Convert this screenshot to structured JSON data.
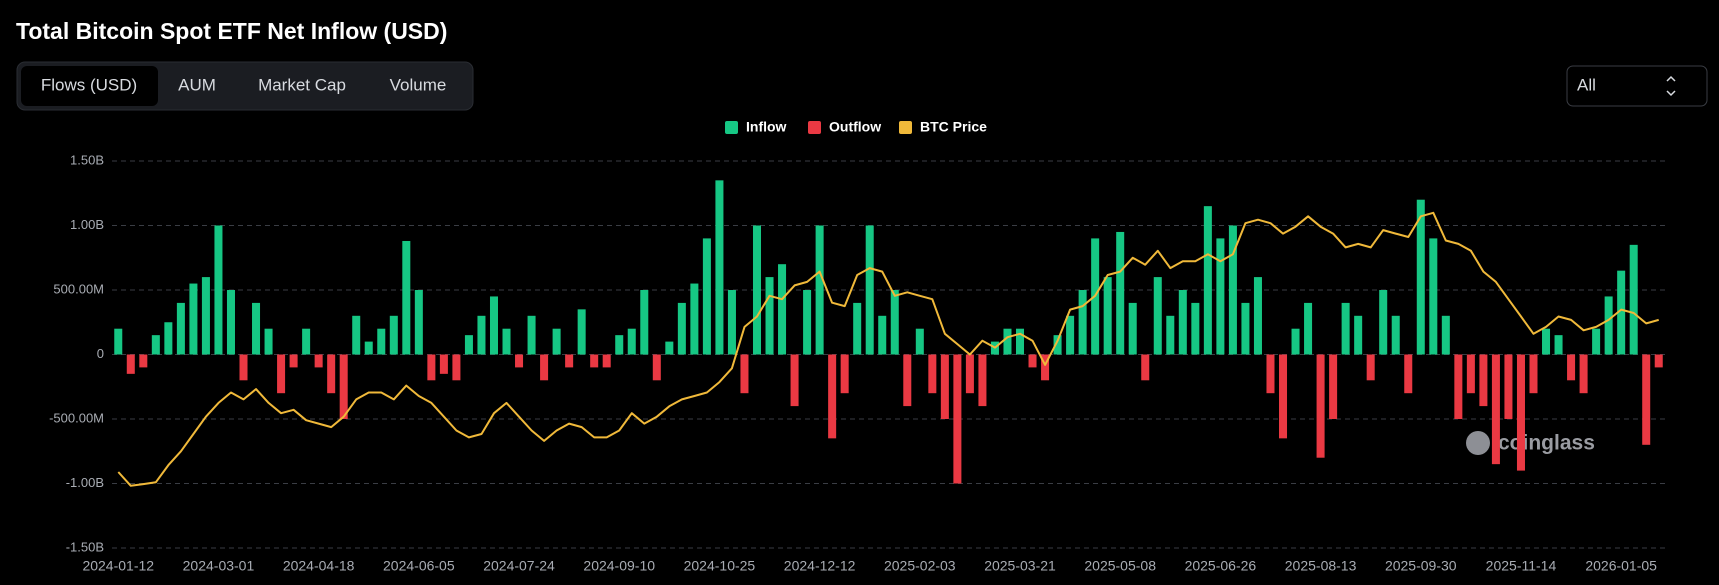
{
  "chart_data": {
    "type": "bar",
    "title": "Total Bitcoin Spot ETF Net Inflow (USD)",
    "categories": [
      "2024-01-12",
      null,
      null,
      null,
      null,
      null,
      null,
      null,
      "2024-03-01",
      null,
      null,
      null,
      null,
      null,
      null,
      null,
      "2024-04-18",
      null,
      null,
      null,
      null,
      null,
      null,
      null,
      "2024-06-05",
      null,
      null,
      null,
      null,
      null,
      null,
      null,
      "2024-07-24",
      null,
      null,
      null,
      null,
      null,
      null,
      null,
      "2024-09-10",
      null,
      null,
      null,
      null,
      null,
      null,
      null,
      "2024-10-25",
      null,
      null,
      null,
      null,
      null,
      null,
      null,
      "2024-12-12",
      null,
      null,
      null,
      null,
      null,
      null,
      null,
      "2025-02-03",
      null,
      null,
      null,
      null,
      null,
      null,
      null,
      "2025-03-21",
      null,
      null,
      null,
      null,
      null,
      null,
      null,
      "2025-05-08",
      null,
      null,
      null,
      null,
      null,
      null,
      null,
      "2025-06-26",
      null,
      null,
      null,
      null,
      null,
      null,
      null,
      "2025-08-13",
      null,
      null,
      null,
      null,
      null,
      null,
      null,
      "2025-09-30",
      null,
      null,
      null,
      null,
      null,
      null,
      null,
      "2025-11-14",
      null,
      null,
      null,
      null,
      null,
      null,
      null,
      "2026-01-05",
      null,
      null,
      null
    ],
    "series": [
      {
        "name": "Inflow",
        "color": "#16c784",
        "values": [
          200000000.0,
          null,
          null,
          150000000.0,
          250000000.0,
          400000000.0,
          550000000.0,
          600000000.0,
          1000000000.0,
          500000000.0,
          null,
          400000000.0,
          200000000.0,
          null,
          null,
          200000000.0,
          null,
          null,
          null,
          300000000.0,
          100000000.0,
          200000000.0,
          300000000.0,
          880000000.0,
          500000000.0,
          null,
          null,
          null,
          150000000.0,
          300000000.0,
          450000000.0,
          200000000.0,
          null,
          300000000.0,
          null,
          200000000.0,
          null,
          350000000.0,
          null,
          null,
          150000000.0,
          200000000.0,
          500000000.0,
          null,
          100000000.0,
          400000000.0,
          550000000.0,
          900000000.0,
          1350000000.0,
          500000000.0,
          null,
          1000000000.0,
          600000000.0,
          700000000.0,
          null,
          500000000.0,
          1000000000.0,
          null,
          null,
          400000000.0,
          1000000000.0,
          300000000.0,
          500000000.0,
          null,
          200000000.0,
          null,
          null,
          null,
          null,
          null,
          100000000.0,
          200000000.0,
          200000000.0,
          null,
          null,
          150000000.0,
          300000000.0,
          500000000.0,
          900000000.0,
          600000000.0,
          950000000.0,
          400000000.0,
          null,
          600000000.0,
          300000000.0,
          500000000.0,
          400000000.0,
          1150000000.0,
          900000000.0,
          1000000000.0,
          400000000.0,
          600000000.0,
          null,
          null,
          200000000.0,
          400000000.0,
          null,
          null,
          400000000.0,
          300000000.0,
          null,
          500000000.0,
          300000000.0,
          null,
          1200000000.0,
          900000000.0,
          300000000.0,
          null,
          null,
          null,
          null,
          null,
          null,
          null,
          200000000.0,
          150000000.0,
          null,
          null,
          200000000.0,
          450000000.0,
          650000000.0,
          850000000.0,
          null,
          null
        ]
      },
      {
        "name": "Outflow",
        "color": "#ea3943",
        "values": [
          null,
          -150000000.0,
          -100000000.0,
          null,
          null,
          null,
          null,
          null,
          null,
          null,
          -200000000.0,
          null,
          null,
          -300000000.0,
          -100000000.0,
          null,
          -100000000.0,
          -300000000.0,
          -500000000.0,
          null,
          null,
          null,
          null,
          null,
          null,
          -200000000.0,
          -150000000.0,
          -200000000.0,
          null,
          null,
          null,
          null,
          -100000000.0,
          null,
          -200000000.0,
          null,
          -100000000.0,
          null,
          -100000000.0,
          -100000000.0,
          null,
          null,
          null,
          -200000000.0,
          null,
          null,
          null,
          null,
          null,
          null,
          -300000000.0,
          null,
          null,
          null,
          -400000000.0,
          null,
          null,
          -650000000.0,
          -300000000.0,
          null,
          null,
          null,
          null,
          -400000000.0,
          null,
          -300000000.0,
          -500000000.0,
          -1000000000.0,
          -300000000.0,
          -400000000.0,
          null,
          null,
          null,
          -100000000.0,
          -200000000.0,
          null,
          null,
          null,
          null,
          null,
          null,
          null,
          -200000000.0,
          null,
          null,
          null,
          null,
          null,
          null,
          null,
          null,
          null,
          -300000000.0,
          -650000000.0,
          null,
          null,
          -800000000.0,
          -500000000.0,
          null,
          null,
          -200000000.0,
          null,
          null,
          -300000000.0,
          null,
          null,
          null,
          -500000000.0,
          -300000000.0,
          -400000000.0,
          -850000000.0,
          -500000000.0,
          -900000000.0,
          -300000000.0,
          null,
          null,
          -200000000.0,
          -300000000.0,
          null,
          null,
          null,
          null,
          -700000000.0,
          -100000000.0
        ]
      },
      {
        "name": "BTC Price",
        "color": "#f0b93a",
        "type": "line",
        "axis": "y2",
        "values": [
          46000,
          42000,
          42500,
          43000,
          48000,
          52000,
          57000,
          62000,
          66000,
          69000,
          67000,
          70000,
          66000,
          63000,
          64000,
          61000,
          60000,
          59000,
          62000,
          67000,
          69000,
          69000,
          67000,
          71000,
          68000,
          66000,
          62000,
          58000,
          56000,
          57000,
          63000,
          66000,
          62000,
          58000,
          55000,
          58000,
          60000,
          59000,
          56000,
          56000,
          58000,
          63000,
          60000,
          62000,
          65000,
          67000,
          68000,
          69000,
          72000,
          76000,
          88000,
          91000,
          97000,
          96000,
          100000,
          101000,
          104000,
          95000,
          94000,
          103000,
          105000,
          104000,
          97000,
          98000,
          97000,
          96000,
          86000,
          83000,
          80000,
          84000,
          82000,
          85000,
          86000,
          84000,
          77000,
          84000,
          93000,
          94000,
          97000,
          103000,
          104000,
          108000,
          106000,
          110000,
          105000,
          107000,
          107000,
          109000,
          107000,
          109000,
          118000,
          119000,
          118000,
          115000,
          117000,
          120000,
          117000,
          115000,
          111000,
          112000,
          111000,
          116000,
          115000,
          114000,
          120000,
          121000,
          113000,
          112000,
          110000,
          104000,
          101000,
          96000,
          91000,
          86000,
          88000,
          91000,
          90000,
          87000,
          88000,
          90000,
          93000,
          92000,
          89000,
          90000
        ]
      }
    ],
    "ylim": [
      -1500000000.0,
      1500000000.0
    ],
    "yticks": [
      {
        "value": -1500000000.0,
        "label": "-1.50B"
      },
      {
        "value": -1000000000.0,
        "label": "-1.00B"
      },
      {
        "value": -500000000.0,
        "label": "-500.00M"
      },
      0,
      {
        "value": 500000000.0,
        "label": "500.00M"
      },
      {
        "value": 1000000000.0,
        "label": "1.00B"
      },
      {
        "value": 1500000000.0,
        "label": "1.50B"
      }
    ],
    "y2lim": [
      24000,
      136000
    ],
    "grid": true
  },
  "controls": {
    "tabs": [
      "Flows (USD)",
      "AUM",
      "Market Cap",
      "Volume"
    ],
    "range": "All"
  },
  "watermark": "coinglass"
}
